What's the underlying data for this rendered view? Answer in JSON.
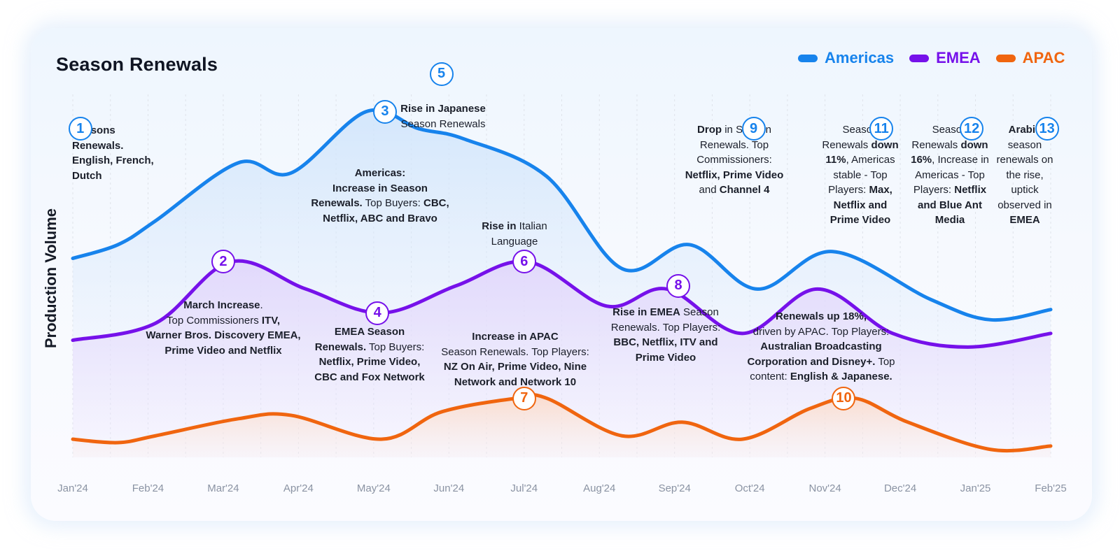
{
  "colors": {
    "americas": "#1783ec",
    "emea": "#7611ea",
    "apac": "#f0650f",
    "grid": "#dfe3ea",
    "axis_text": "#8a93a3"
  },
  "chart_data": {
    "type": "area",
    "title": "Season Renewals",
    "xlabel": "",
    "ylabel": "Production Volume",
    "x": [
      "Jan'24",
      "Feb'24",
      "Mar'24",
      "Apr'24",
      "May'24",
      "Jun'24",
      "Jul'24",
      "Aug'24",
      "Sep'24",
      "Oct'24",
      "Nov'24",
      "Dec'24",
      "Jan'25",
      "Feb'25"
    ],
    "grid": "vertical-dashed",
    "legend_position": "top-right",
    "series": [
      {
        "name": "Americas",
        "color": "#1783ec",
        "points": [
          [
            0,
            0.54
          ],
          [
            0.6,
            0.58
          ],
          [
            1.1,
            0.65
          ],
          [
            2.2,
            0.82
          ],
          [
            2.9,
            0.79
          ],
          [
            3.9,
            0.97
          ],
          [
            4.6,
            0.92
          ],
          [
            5.2,
            0.89
          ],
          [
            6.3,
            0.78
          ],
          [
            7.3,
            0.51
          ],
          [
            8.2,
            0.58
          ],
          [
            9.1,
            0.45
          ],
          [
            10.1,
            0.56
          ],
          [
            11.4,
            0.42
          ],
          [
            12.2,
            0.36
          ],
          [
            13,
            0.39
          ]
        ]
      },
      {
        "name": "EMEA",
        "color": "#7611ea",
        "points": [
          [
            0,
            0.3
          ],
          [
            1.1,
            0.35
          ],
          [
            2.1,
            0.53
          ],
          [
            3.1,
            0.45
          ],
          [
            4.1,
            0.38
          ],
          [
            5.1,
            0.46
          ],
          [
            6.05,
            0.53
          ],
          [
            7.1,
            0.4
          ],
          [
            7.9,
            0.45
          ],
          [
            8.9,
            0.32
          ],
          [
            9.9,
            0.45
          ],
          [
            10.9,
            0.32
          ],
          [
            11.9,
            0.28
          ],
          [
            13,
            0.32
          ]
        ]
      },
      {
        "name": "APAC",
        "color": "#f0650f",
        "points": [
          [
            0,
            0.01
          ],
          [
            0.6,
            0.0
          ],
          [
            1.1,
            0.02
          ],
          [
            2.2,
            0.07
          ],
          [
            2.9,
            0.08
          ],
          [
            4.1,
            0.01
          ],
          [
            4.9,
            0.09
          ],
          [
            5.9,
            0.13
          ],
          [
            6.3,
            0.13
          ],
          [
            7.3,
            0.02
          ],
          [
            8.1,
            0.06
          ],
          [
            8.9,
            0.01
          ],
          [
            9.8,
            0.1
          ],
          [
            10.4,
            0.13
          ],
          [
            11.1,
            0.06
          ],
          [
            12.2,
            -0.02
          ],
          [
            13,
            -0.01
          ]
        ]
      }
    ],
    "annotations": [
      {
        "n": "1",
        "series": "Americas",
        "x": 0.1,
        "y": 0.92
      },
      {
        "n": "2",
        "series": "EMEA",
        "x": 2.0,
        "y": 0.53
      },
      {
        "n": "3",
        "series": "Americas",
        "x": 4.15,
        "y": 0.97
      },
      {
        "n": "4",
        "series": "EMEA",
        "x": 4.05,
        "y": 0.38
      },
      {
        "n": "5",
        "series": "Americas",
        "x": 4.9,
        "y": 1.08
      },
      {
        "n": "6",
        "series": "EMEA",
        "x": 6.0,
        "y": 0.53
      },
      {
        "n": "7",
        "series": "APAC",
        "x": 6.0,
        "y": 0.13
      },
      {
        "n": "8",
        "series": "EMEA",
        "x": 8.05,
        "y": 0.46
      },
      {
        "n": "9",
        "series": "Americas",
        "x": 9.05,
        "y": 0.92
      },
      {
        "n": "10",
        "series": "APAC",
        "x": 10.25,
        "y": 0.13
      },
      {
        "n": "11",
        "series": "Americas",
        "x": 10.75,
        "y": 0.92
      },
      {
        "n": "12",
        "series": "Americas",
        "x": 11.95,
        "y": 0.92
      },
      {
        "n": "13",
        "series": "Americas",
        "x": 12.95,
        "y": 0.92
      }
    ]
  },
  "notes": [
    {
      "parts": [
        [
          "b",
          "Seasons"
        ],
        [
          "br",
          ""
        ],
        [
          "b",
          "Renewals."
        ],
        [
          "br",
          ""
        ],
        [
          "b",
          "English, French,"
        ],
        [
          "br",
          ""
        ],
        [
          "b",
          "Dutch"
        ]
      ]
    },
    {
      "parts": [
        [
          "b",
          "March Increase"
        ],
        [
          "t",
          "."
        ],
        [
          "br",
          ""
        ],
        [
          "t",
          "Top Commissioners "
        ],
        [
          "b",
          "ITV,"
        ],
        [
          "br",
          ""
        ],
        [
          "b",
          "Warner Bros. Discovery EMEA,"
        ],
        [
          "br",
          ""
        ],
        [
          "b",
          "Prime Video and Netflix"
        ]
      ]
    },
    {
      "parts": [
        [
          "b",
          "Americas:"
        ],
        [
          "br",
          ""
        ],
        [
          "b",
          "Increase in Season"
        ],
        [
          "br",
          ""
        ],
        [
          "b",
          "Renewals."
        ],
        [
          "t",
          " Top Buyers: "
        ],
        [
          "b",
          "CBC,"
        ],
        [
          "br",
          ""
        ],
        [
          "b",
          "Netflix, ABC and Bravo"
        ]
      ]
    },
    {
      "parts": [
        [
          "b",
          "EMEA Season"
        ],
        [
          "br",
          ""
        ],
        [
          "b",
          "Renewals."
        ],
        [
          "t",
          " Top Buyers:"
        ],
        [
          "br",
          ""
        ],
        [
          "b",
          "Netflix, Prime Video,"
        ],
        [
          "br",
          ""
        ],
        [
          "b",
          "CBC and Fox Network"
        ]
      ]
    },
    {
      "parts": [
        [
          "b",
          "Rise in Japanese"
        ],
        [
          "br",
          ""
        ],
        [
          "t",
          "Season Renewals"
        ]
      ]
    },
    {
      "parts": [
        [
          "b",
          "Rise in"
        ],
        [
          "t",
          " Italian"
        ],
        [
          "br",
          ""
        ],
        [
          "t",
          "Language"
        ]
      ]
    },
    {
      "parts": [
        [
          "b",
          "Increase in APAC"
        ],
        [
          "br",
          ""
        ],
        [
          "t",
          "Season Renewals. Top Players:"
        ],
        [
          "br",
          ""
        ],
        [
          "b",
          "NZ On Air, Prime Video, Nine"
        ],
        [
          "br",
          ""
        ],
        [
          "b",
          "Network and Network 10"
        ]
      ]
    },
    {
      "parts": [
        [
          "b",
          "Rise in EMEA"
        ],
        [
          "t",
          " Season"
        ],
        [
          "br",
          ""
        ],
        [
          "t",
          "Renewals. Top Players:"
        ],
        [
          "br",
          ""
        ],
        [
          "b",
          "BBC, Netflix, ITV and"
        ],
        [
          "br",
          ""
        ],
        [
          "b",
          "Prime Video"
        ]
      ]
    },
    {
      "parts": [
        [
          "b",
          "Drop"
        ],
        [
          "t",
          " in Season"
        ],
        [
          "br",
          ""
        ],
        [
          "t",
          "Renewals. Top"
        ],
        [
          "br",
          ""
        ],
        [
          "t",
          "Commissioners:"
        ],
        [
          "br",
          ""
        ],
        [
          "b",
          "Netflix, Prime Video"
        ],
        [
          "br",
          ""
        ],
        [
          "t",
          "and "
        ],
        [
          "b",
          "Channel 4"
        ]
      ]
    },
    {
      "parts": [
        [
          "b",
          "Renewals up 18%,"
        ],
        [
          "br",
          ""
        ],
        [
          "t",
          "driven by APAC. Top Players:"
        ],
        [
          "br",
          ""
        ],
        [
          "b",
          "Australian Broadcasting"
        ],
        [
          "br",
          ""
        ],
        [
          "b",
          "Corporation and Disney+."
        ],
        [
          "t",
          " Top"
        ],
        [
          "br",
          ""
        ],
        [
          "t",
          "content: "
        ],
        [
          "b",
          "English & Japanese."
        ]
      ]
    },
    {
      "parts": [
        [
          "t",
          "Season"
        ],
        [
          "br",
          ""
        ],
        [
          "t",
          "Renewals "
        ],
        [
          "b",
          "down"
        ],
        [
          "br",
          ""
        ],
        [
          "b",
          "11%"
        ],
        [
          "t",
          ", Americas"
        ],
        [
          "br",
          ""
        ],
        [
          "t",
          "stable -  Top"
        ],
        [
          "br",
          ""
        ],
        [
          "t",
          "Players: "
        ],
        [
          "b",
          "Max,"
        ],
        [
          "br",
          ""
        ],
        [
          "b",
          "Netflix and"
        ],
        [
          "br",
          ""
        ],
        [
          "b",
          "Prime Video"
        ]
      ]
    },
    {
      "parts": [
        [
          "t",
          "Season"
        ],
        [
          "br",
          ""
        ],
        [
          "t",
          "Renewals "
        ],
        [
          "b",
          "down"
        ],
        [
          "br",
          ""
        ],
        [
          "b",
          "16%"
        ],
        [
          "t",
          ", Increase in"
        ],
        [
          "br",
          ""
        ],
        [
          "t",
          "Americas - Top"
        ],
        [
          "br",
          ""
        ],
        [
          "t",
          "Players: "
        ],
        [
          "b",
          "Netflix"
        ],
        [
          "br",
          ""
        ],
        [
          "b",
          "and Blue Ant"
        ],
        [
          "br",
          ""
        ],
        [
          "b",
          "Media"
        ]
      ]
    },
    {
      "parts": [
        [
          "b",
          "Arabic"
        ],
        [
          "br",
          ""
        ],
        [
          "t",
          "season"
        ],
        [
          "br",
          ""
        ],
        [
          "t",
          "renewals on"
        ],
        [
          "br",
          ""
        ],
        [
          "t",
          "the rise,"
        ],
        [
          "br",
          ""
        ],
        [
          "t",
          "uptick"
        ],
        [
          "br",
          ""
        ],
        [
          "t",
          "observed in"
        ],
        [
          "br",
          ""
        ],
        [
          "b",
          "EMEA"
        ]
      ]
    }
  ]
}
